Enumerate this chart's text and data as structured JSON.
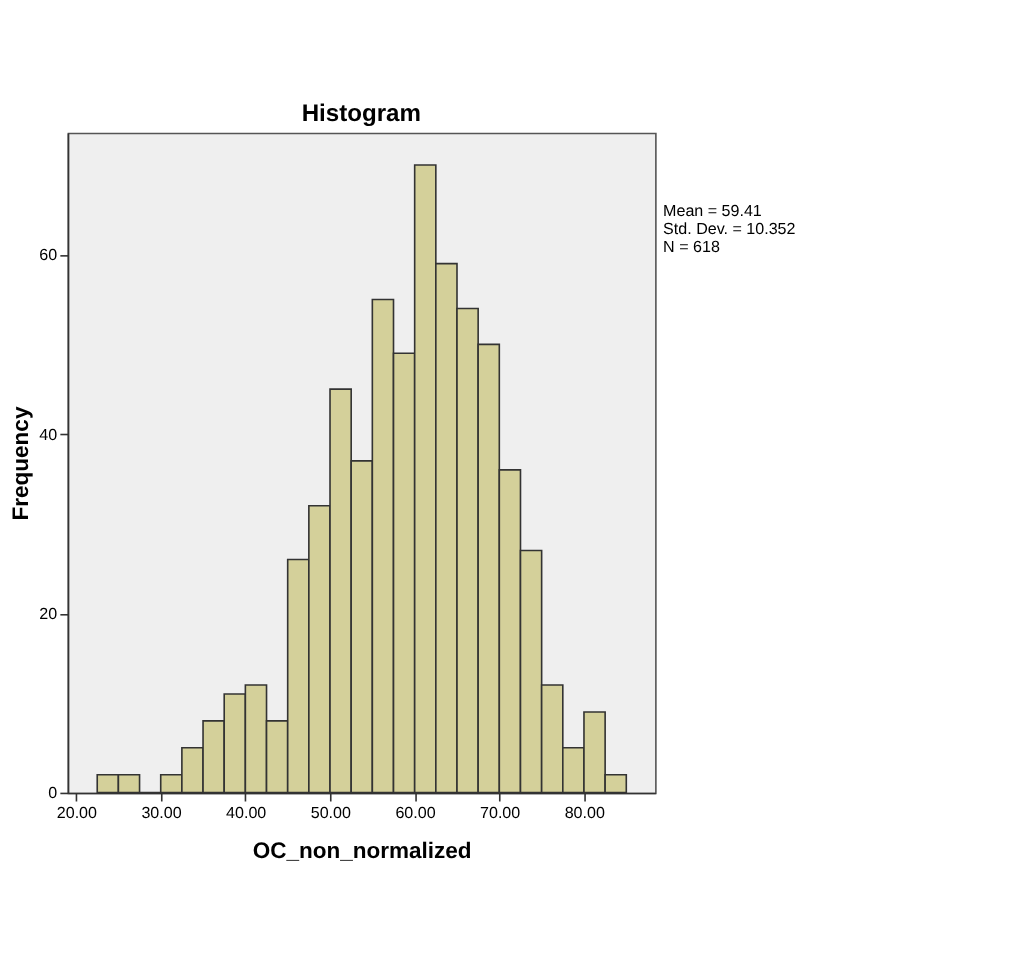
{
  "chart_data": {
    "type": "histogram",
    "title": "Histogram",
    "xlabel": "OC_non_normalized",
    "ylabel": "Frequency",
    "bins": [
      22.5,
      25,
      27.5,
      30,
      32.5,
      35,
      37.5,
      40,
      42.5,
      45,
      47.5,
      50,
      52.5,
      55,
      57.5,
      60,
      62.5,
      65,
      67.5,
      70,
      72.5,
      75,
      77.5,
      80,
      82.5,
      85
    ],
    "values": [
      2,
      2,
      0,
      2,
      5,
      8,
      11,
      12,
      8,
      26,
      32,
      45,
      37,
      55,
      49,
      70,
      59,
      54,
      50,
      36,
      27,
      12,
      5,
      9,
      2
    ],
    "color": "#d4d09a",
    "xlim": [
      19.0,
      88.4
    ],
    "ylim": [
      0,
      73.6
    ],
    "xticks": [
      {
        "value": 20,
        "label": "20.00"
      },
      {
        "value": 30,
        "label": "30.00"
      },
      {
        "value": 40,
        "label": "40.00"
      },
      {
        "value": 50,
        "label": "50.00"
      },
      {
        "value": 60,
        "label": "60.00"
      },
      {
        "value": 70,
        "label": "70.00"
      },
      {
        "value": 80,
        "label": "80.00"
      }
    ],
    "yticks": [
      0,
      20,
      40,
      60
    ],
    "grid": false,
    "annotations": [
      "Mean = 59.41",
      "Std. Dev. = 10.352",
      "N = 618"
    ]
  }
}
